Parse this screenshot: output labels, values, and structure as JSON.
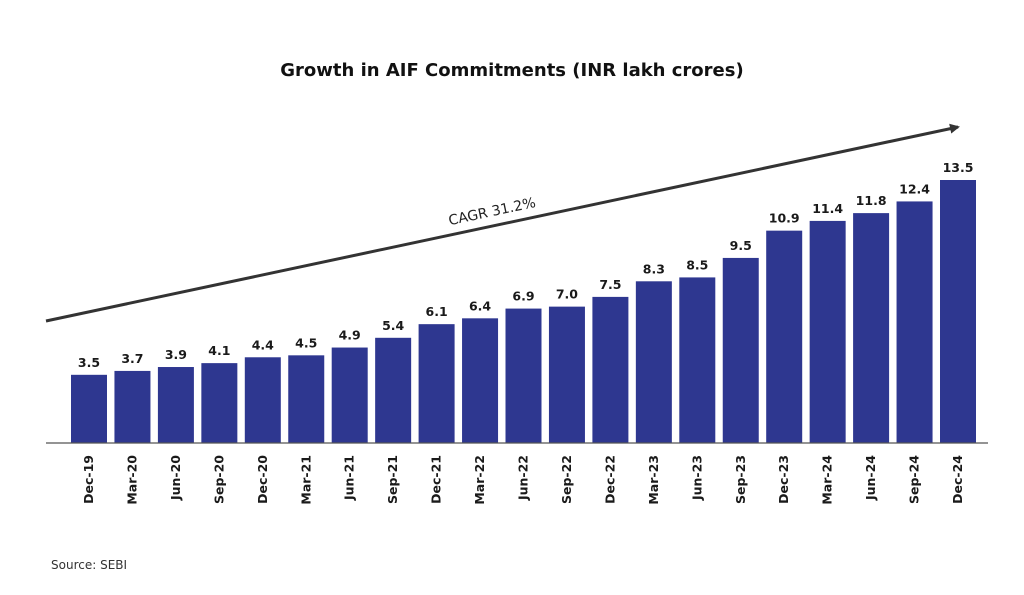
{
  "colors": {
    "bar": "#2e3790",
    "axis": "#555555",
    "arrow": "#333333",
    "text": "#1a1a1a"
  },
  "chart_data": {
    "type": "bar",
    "title": "Growth in AIF Commitments (INR lakh crores)",
    "xlabel": "",
    "ylabel": "",
    "ylim": [
      0,
      13.5
    ],
    "grid": false,
    "categories": [
      "Dec-19",
      "Mar-20",
      "Jun-20",
      "Sep-20",
      "Dec-20",
      "Mar-21",
      "Jun-21",
      "Sep-21",
      "Dec-21",
      "Mar-22",
      "Jun-22",
      "Sep-22",
      "Dec-22",
      "Mar-23",
      "Jun-23",
      "Sep-23",
      "Dec-23",
      "Mar-24",
      "Jun-24",
      "Sep-24",
      "Dec-24"
    ],
    "values": [
      3.5,
      3.7,
      3.9,
      4.1,
      4.4,
      4.5,
      4.9,
      5.4,
      6.1,
      6.4,
      6.9,
      7.0,
      7.5,
      8.3,
      8.5,
      9.5,
      10.9,
      11.4,
      11.8,
      12.4,
      13.5
    ],
    "value_labels": [
      "3.5",
      "3.7",
      "3.9",
      "4.1",
      "4.4",
      "4.5",
      "4.9",
      "5.4",
      "6.1",
      "6.4",
      "6.9",
      "7.0",
      "7.5",
      "8.3",
      "8.5",
      "9.5",
      "10.9",
      "11.4",
      "11.8",
      "12.4",
      "13.5"
    ],
    "annotation": "CAGR 31.2%"
  },
  "source": "Source: SEBI"
}
